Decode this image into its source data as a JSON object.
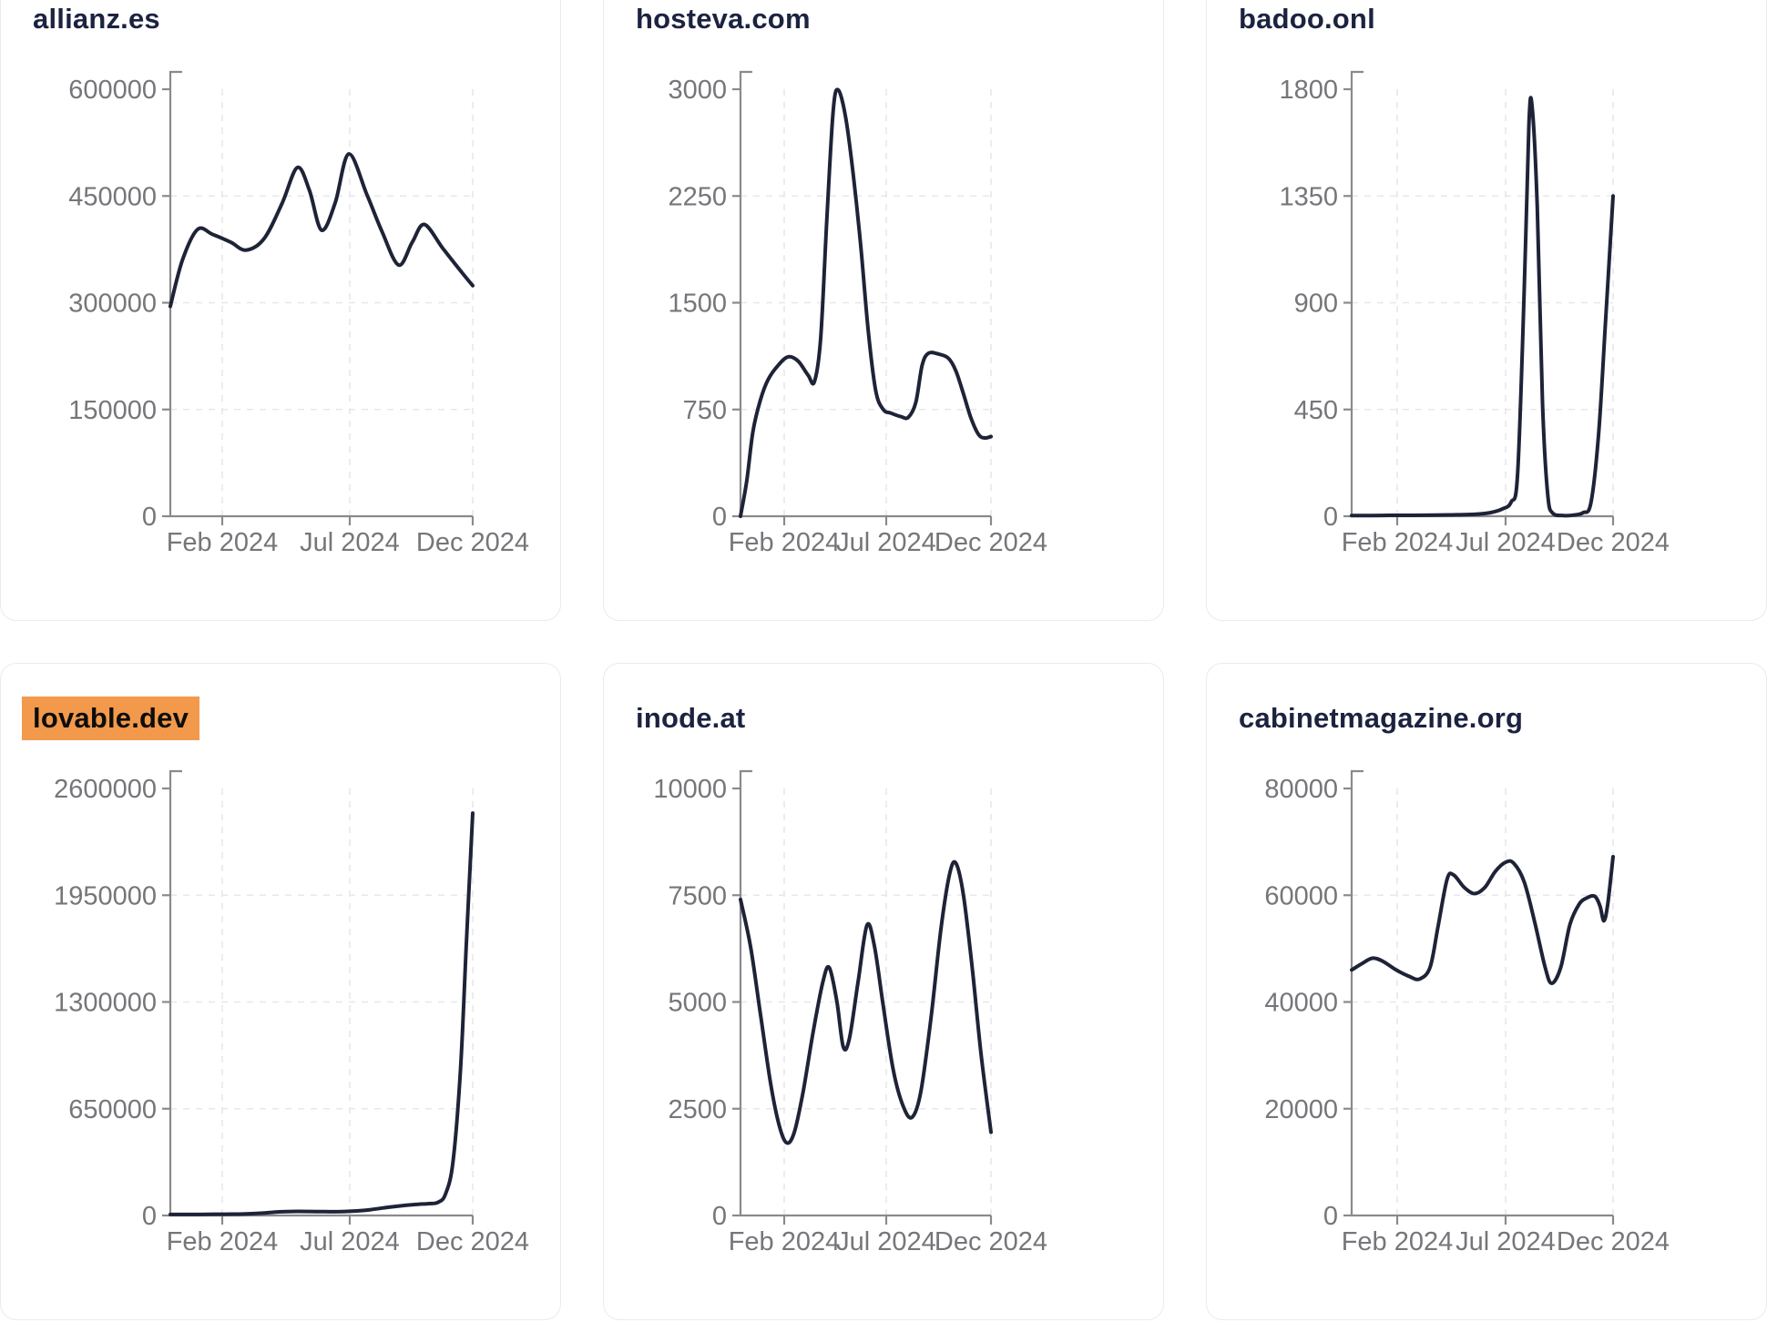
{
  "page": {
    "background": "#ffffff",
    "line_color": "#1e2337",
    "grid_color": "#e8e8ec",
    "axis_color": "#8a8a8e",
    "tick_label_color": "#76767a",
    "title_color": "#1c2340",
    "highlight_color": "#f2994b",
    "card_border_color": "#e9ebf0"
  },
  "chart_data": [
    {
      "title": "allianz.es",
      "highlighted": false,
      "type": "line",
      "x_range": "Jan 2024 - Dec 2024",
      "x_tick_labels": [
        "Feb 2024",
        "Jul 2024",
        "Dec 2024"
      ],
      "y_ticks": [
        0,
        150000,
        300000,
        450000,
        600000
      ],
      "ylim": [
        0,
        600000
      ],
      "points": [
        [
          0,
          295000
        ],
        [
          0.04,
          360000
        ],
        [
          0.09,
          403000
        ],
        [
          0.14,
          396000
        ],
        [
          0.2,
          385000
        ],
        [
          0.25,
          374000
        ],
        [
          0.31,
          390000
        ],
        [
          0.37,
          440000
        ],
        [
          0.42,
          490000
        ],
        [
          0.46,
          458000
        ],
        [
          0.5,
          402000
        ],
        [
          0.545,
          440000
        ],
        [
          0.59,
          509000
        ],
        [
          0.65,
          452000
        ],
        [
          0.7,
          400000
        ],
        [
          0.755,
          353000
        ],
        [
          0.8,
          385000
        ],
        [
          0.84,
          410000
        ],
        [
          0.9,
          377000
        ],
        [
          0.95,
          350000
        ],
        [
          1,
          324000
        ]
      ]
    },
    {
      "title": "hosteva.com",
      "highlighted": false,
      "type": "line",
      "x_range": "Jan 2024 - Dec 2024",
      "x_tick_labels": [
        "Feb 2024",
        "Jul 2024",
        "Dec 2024"
      ],
      "y_ticks": [
        0,
        750,
        1500,
        2250,
        3000
      ],
      "ylim": [
        0,
        3000
      ],
      "points": [
        [
          0,
          0
        ],
        [
          0.025,
          250
        ],
        [
          0.05,
          600
        ],
        [
          0.08,
          820
        ],
        [
          0.11,
          960
        ],
        [
          0.15,
          1060
        ],
        [
          0.19,
          1120
        ],
        [
          0.23,
          1090
        ],
        [
          0.27,
          990
        ],
        [
          0.295,
          945
        ],
        [
          0.32,
          1250
        ],
        [
          0.345,
          2100
        ],
        [
          0.37,
          2850
        ],
        [
          0.39,
          2995
        ],
        [
          0.42,
          2800
        ],
        [
          0.45,
          2400
        ],
        [
          0.48,
          1900
        ],
        [
          0.51,
          1300
        ],
        [
          0.54,
          880
        ],
        [
          0.57,
          750
        ],
        [
          0.6,
          725
        ],
        [
          0.64,
          700
        ],
        [
          0.67,
          695
        ],
        [
          0.7,
          800
        ],
        [
          0.725,
          1060
        ],
        [
          0.75,
          1145
        ],
        [
          0.79,
          1140
        ],
        [
          0.83,
          1110
        ],
        [
          0.86,
          1020
        ],
        [
          0.89,
          860
        ],
        [
          0.92,
          690
        ],
        [
          0.95,
          575
        ],
        [
          0.975,
          550
        ],
        [
          1,
          560
        ]
      ]
    },
    {
      "title": "badoo.onl",
      "highlighted": false,
      "type": "line",
      "x_range": "Jan 2024 - Dec 2024",
      "x_tick_labels": [
        "Feb 2024",
        "Jul 2024",
        "Dec 2024"
      ],
      "y_ticks": [
        0,
        450,
        900,
        1350,
        1800
      ],
      "ylim": [
        0,
        1800
      ],
      "points": [
        [
          0,
          3
        ],
        [
          0.08,
          3
        ],
        [
          0.16,
          4
        ],
        [
          0.24,
          4
        ],
        [
          0.32,
          5
        ],
        [
          0.4,
          6
        ],
        [
          0.47,
          8
        ],
        [
          0.53,
          15
        ],
        [
          0.575,
          30
        ],
        [
          0.61,
          60
        ],
        [
          0.635,
          180
        ],
        [
          0.66,
          950
        ],
        [
          0.678,
          1650
        ],
        [
          0.69,
          1730
        ],
        [
          0.71,
          1300
        ],
        [
          0.73,
          480
        ],
        [
          0.75,
          90
        ],
        [
          0.77,
          12
        ],
        [
          0.81,
          3
        ],
        [
          0.85,
          5
        ],
        [
          0.885,
          15
        ],
        [
          0.915,
          55
        ],
        [
          0.945,
          350
        ],
        [
          0.97,
          800
        ],
        [
          1,
          1350
        ]
      ]
    },
    {
      "title": "lovable.dev",
      "highlighted": true,
      "type": "line",
      "x_range": "Jan 2024 - Dec 2024",
      "x_tick_labels": [
        "Feb 2024",
        "Jul 2024",
        "Dec 2024"
      ],
      "y_ticks": [
        0,
        650000,
        1300000,
        1950000,
        2600000
      ],
      "ylim": [
        0,
        2600000
      ],
      "points": [
        [
          0,
          6000
        ],
        [
          0.06,
          6000
        ],
        [
          0.12,
          7000
        ],
        [
          0.18,
          8000
        ],
        [
          0.24,
          9000
        ],
        [
          0.3,
          14000
        ],
        [
          0.36,
          22000
        ],
        [
          0.42,
          25000
        ],
        [
          0.48,
          24000
        ],
        [
          0.54,
          23000
        ],
        [
          0.6,
          26000
        ],
        [
          0.66,
          35000
        ],
        [
          0.72,
          50000
        ],
        [
          0.78,
          62000
        ],
        [
          0.82,
          68000
        ],
        [
          0.855,
          72000
        ],
        [
          0.885,
          80000
        ],
        [
          0.91,
          130000
        ],
        [
          0.935,
          330000
        ],
        [
          0.96,
          900000
        ],
        [
          0.98,
          1700000
        ],
        [
          1,
          2450000
        ]
      ]
    },
    {
      "title": "inode.at",
      "highlighted": false,
      "type": "line",
      "x_range": "Jan 2024 - Dec 2024",
      "x_tick_labels": [
        "Feb 2024",
        "Jul 2024",
        "Dec 2024"
      ],
      "y_ticks": [
        0,
        2500,
        5000,
        7500,
        10000
      ],
      "ylim": [
        0,
        10000
      ],
      "points": [
        [
          0,
          7400
        ],
        [
          0.04,
          6300
        ],
        [
          0.08,
          4700
        ],
        [
          0.12,
          3100
        ],
        [
          0.155,
          2100
        ],
        [
          0.185,
          1700
        ],
        [
          0.215,
          1950
        ],
        [
          0.25,
          2900
        ],
        [
          0.29,
          4300
        ],
        [
          0.33,
          5500
        ],
        [
          0.355,
          5800
        ],
        [
          0.385,
          5000
        ],
        [
          0.41,
          3950
        ],
        [
          0.435,
          4150
        ],
        [
          0.47,
          5500
        ],
        [
          0.505,
          6800
        ],
        [
          0.535,
          6300
        ],
        [
          0.57,
          4900
        ],
        [
          0.61,
          3400
        ],
        [
          0.65,
          2550
        ],
        [
          0.685,
          2300
        ],
        [
          0.72,
          2900
        ],
        [
          0.76,
          4600
        ],
        [
          0.8,
          6700
        ],
        [
          0.835,
          8000
        ],
        [
          0.86,
          8250
        ],
        [
          0.89,
          7500
        ],
        [
          0.925,
          5800
        ],
        [
          0.96,
          3800
        ],
        [
          1,
          1950
        ]
      ]
    },
    {
      "title": "cabinetmagazine.org",
      "highlighted": false,
      "type": "line",
      "x_range": "Jan 2024 - Dec 2024",
      "x_tick_labels": [
        "Feb 2024",
        "Jul 2024",
        "Dec 2024"
      ],
      "y_ticks": [
        0,
        20000,
        40000,
        60000,
        80000
      ],
      "ylim": [
        0,
        80000
      ],
      "points": [
        [
          0,
          46000
        ],
        [
          0.04,
          47200
        ],
        [
          0.08,
          48200
        ],
        [
          0.12,
          47600
        ],
        [
          0.17,
          46000
        ],
        [
          0.22,
          44800
        ],
        [
          0.26,
          44300
        ],
        [
          0.3,
          46500
        ],
        [
          0.33,
          54000
        ],
        [
          0.365,
          63000
        ],
        [
          0.39,
          63800
        ],
        [
          0.43,
          61500
        ],
        [
          0.47,
          60300
        ],
        [
          0.51,
          61500
        ],
        [
          0.55,
          64500
        ],
        [
          0.59,
          66200
        ],
        [
          0.62,
          66000
        ],
        [
          0.66,
          62500
        ],
        [
          0.7,
          55000
        ],
        [
          0.74,
          46500
        ],
        [
          0.765,
          43500
        ],
        [
          0.8,
          46500
        ],
        [
          0.835,
          54500
        ],
        [
          0.87,
          58300
        ],
        [
          0.9,
          59500
        ],
        [
          0.93,
          59800
        ],
        [
          0.95,
          58000
        ],
        [
          0.965,
          55200
        ],
        [
          0.98,
          58500
        ],
        [
          1,
          67200
        ]
      ]
    }
  ]
}
